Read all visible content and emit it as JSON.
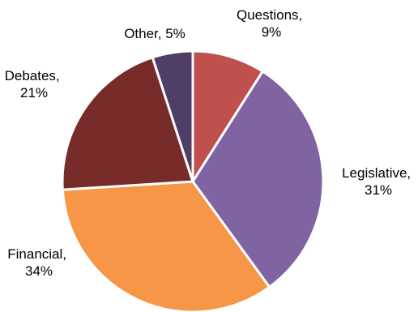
{
  "chart_data": {
    "type": "pie",
    "title": "",
    "legend": "none",
    "slices": [
      {
        "name": "Questions",
        "value": 9,
        "color": "#C0504D",
        "label_line1": "Questions,",
        "label_line2": "9%"
      },
      {
        "name": "Legislative",
        "value": 31,
        "color": "#8064A2",
        "label_line1": "Legislative,",
        "label_line2": "31%"
      },
      {
        "name": "Financial",
        "value": 34,
        "color": "#F79646",
        "label_line1": "Financial,",
        "label_line2": "34%"
      },
      {
        "name": "Debates",
        "value": 21,
        "color": "#772C2A",
        "label_line1": "Debates,",
        "label_line2": "21%"
      },
      {
        "name": "Other",
        "value": 5,
        "color": "#4F3F66",
        "label_line1": "Other, 5%",
        "label_line2": ""
      }
    ]
  }
}
